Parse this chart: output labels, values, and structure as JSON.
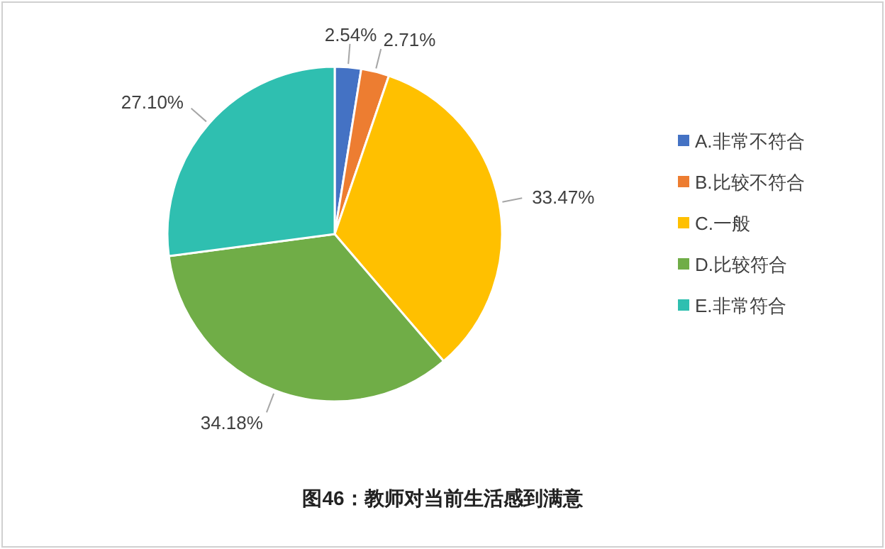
{
  "chart_data": {
    "type": "pie",
    "title": "图46：教师对当前生活感到满意",
    "categories": [
      "A.非常不符合",
      "B.比较不符合",
      "C.一般",
      "D.比较符合",
      "E.非常符合"
    ],
    "values": [
      2.54,
      2.71,
      33.47,
      34.18,
      27.1
    ],
    "value_labels": [
      "2.54%",
      "2.71%",
      "33.47%",
      "34.18%",
      "27.10%"
    ],
    "colors": [
      "#4472c4",
      "#ed7d31",
      "#ffc000",
      "#70ad47",
      "#2fbfb0"
    ],
    "legend": "right"
  }
}
